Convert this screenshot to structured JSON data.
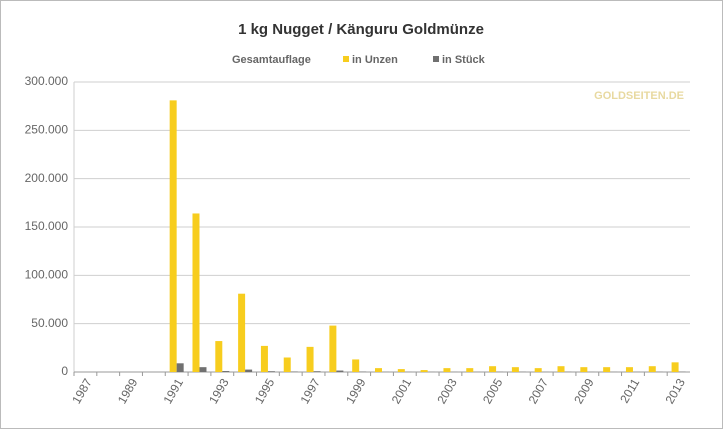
{
  "chart_data": {
    "type": "bar",
    "title": "1 kg Nugget / Känguru Goldmünze",
    "legend_title": "Gesamtauflage",
    "watermark": "GOLDSEITEN.DE",
    "categories": [
      "1987",
      null,
      "1989",
      null,
      "1991",
      null,
      "1993",
      null,
      "1995",
      null,
      "1997",
      null,
      "1999",
      null,
      "2001",
      null,
      "2003",
      null,
      "2005",
      null,
      "2007",
      null,
      "2009",
      null,
      "2011",
      null,
      "2013"
    ],
    "series": [
      {
        "name": "in Unzen",
        "color": "#f7cd1e",
        "values": [
          0,
          0,
          0,
          0,
          281000,
          164000,
          32000,
          81000,
          27000,
          15000,
          26000,
          48000,
          13000,
          4000,
          3000,
          2000,
          4000,
          4000,
          6000,
          5000,
          4000,
          6000,
          5000,
          5000,
          5000,
          6000,
          10000
        ]
      },
      {
        "name": "in Stück",
        "color": "#707070",
        "values": [
          0,
          0,
          0,
          0,
          9000,
          5000,
          1000,
          2500,
          800,
          500,
          800,
          1500,
          400,
          100,
          100,
          100,
          100,
          100,
          200,
          200,
          100,
          200,
          100,
          100,
          100,
          200,
          300
        ]
      }
    ],
    "ylim": [
      0,
      300000
    ],
    "yticks": [
      0,
      {
        "value": 50000,
        "label": "50.000"
      },
      {
        "value": 100000,
        "label": "100.000"
      },
      {
        "value": 150000,
        "label": "150.000"
      },
      {
        "value": 200000,
        "label": "200.000"
      },
      {
        "value": 250000,
        "label": "250.000"
      },
      {
        "value": 300000,
        "label": "300.000"
      }
    ],
    "grid": true
  }
}
